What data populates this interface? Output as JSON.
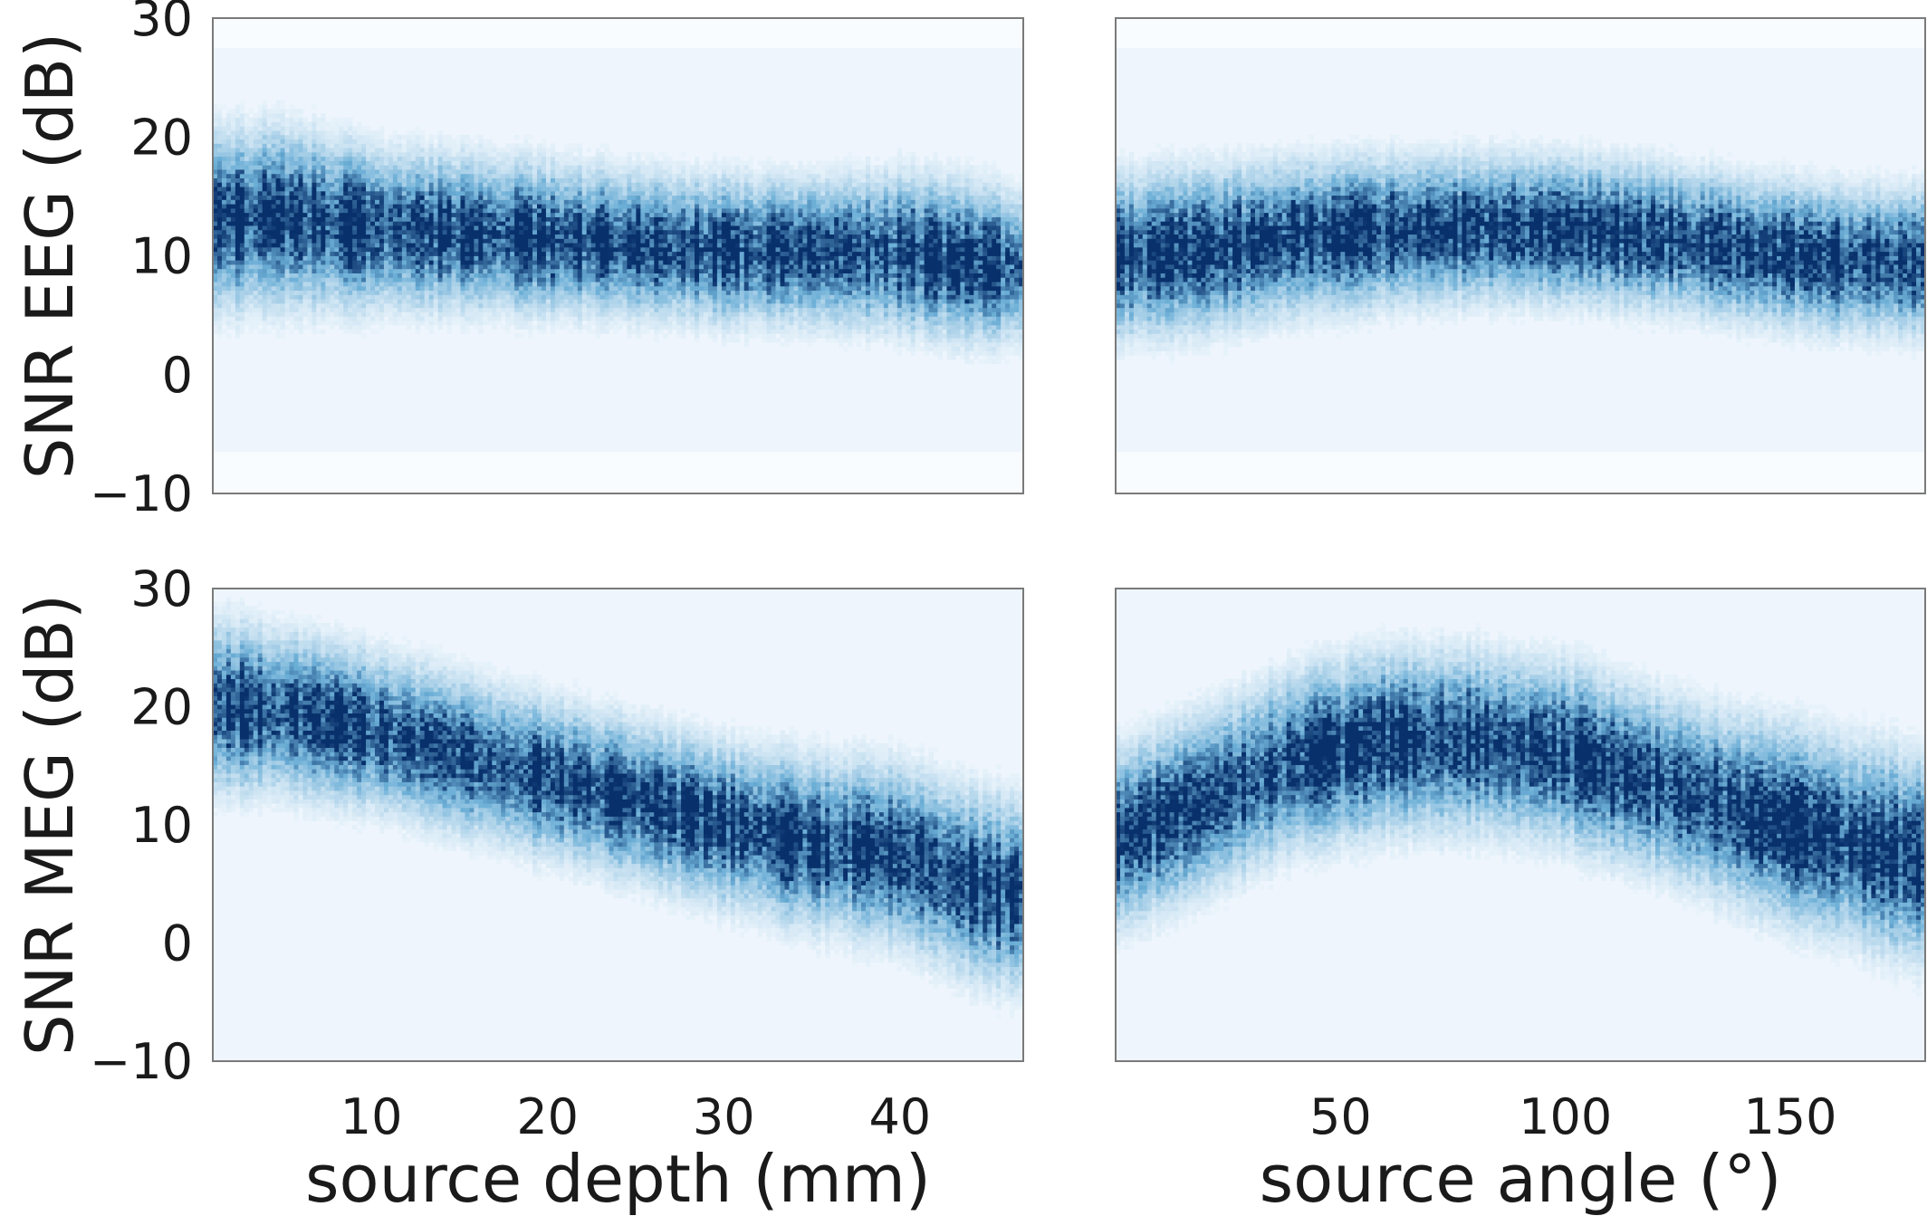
{
  "chart_data": [
    {
      "type": "heatmap",
      "panel": "top-left",
      "xlabel": "",
      "ylabel": "SNR EEG (dB)",
      "xlim": [
        1,
        47
      ],
      "ylim": [
        -10,
        30
      ],
      "xticks": [],
      "yticks": [
        -10,
        0,
        10,
        20,
        30
      ],
      "band": {
        "x": [
          2,
          5,
          10,
          15,
          20,
          25,
          30,
          35,
          40,
          44,
          47
        ],
        "center": [
          13,
          13.2,
          12.3,
          12,
          11.5,
          11,
          10.5,
          10.3,
          10.3,
          9.5,
          9
        ],
        "spread": [
          4,
          4,
          3.6,
          3.4,
          3.3,
          3.2,
          3.2,
          3.2,
          3.5,
          3.5,
          3.3
        ]
      },
      "grid": false
    },
    {
      "type": "heatmap",
      "panel": "top-right",
      "xlabel": "",
      "ylabel": "",
      "xlim": [
        0,
        180
      ],
      "ylim": [
        -10,
        30
      ],
      "xticks": [],
      "yticks": [],
      "band": {
        "x": [
          2,
          20,
          40,
          60,
          80,
          100,
          120,
          140,
          160,
          180
        ],
        "center": [
          10,
          10.5,
          11.5,
          12,
          12.3,
          12.2,
          11.6,
          10.5,
          9.7,
          9.5
        ],
        "spread": [
          3.6,
          3.6,
          3.4,
          3.3,
          3.2,
          3.2,
          3.2,
          3.2,
          3.2,
          3.2
        ]
      },
      "grid": false
    },
    {
      "type": "heatmap",
      "panel": "bottom-left",
      "xlabel": "source depth (mm)",
      "ylabel": "SNR MEG (dB)",
      "xlim": [
        1,
        47
      ],
      "ylim": [
        -10,
        30
      ],
      "xticks": [
        10,
        20,
        30,
        40
      ],
      "yticks": [
        -10,
        0,
        10,
        20,
        30
      ],
      "band": {
        "x": [
          2,
          5,
          10,
          15,
          20,
          25,
          30,
          35,
          40,
          44,
          47
        ],
        "center": [
          20,
          19.5,
          18,
          16,
          14,
          12,
          10,
          8.5,
          7.5,
          5,
          4
        ],
        "spread": [
          3.8,
          3.6,
          3.5,
          3.5,
          3.5,
          3.5,
          3.6,
          3.8,
          4,
          4.2,
          4.2
        ]
      },
      "grid": false
    },
    {
      "type": "heatmap",
      "panel": "bottom-right",
      "xlabel": "source angle (°)",
      "ylabel": "",
      "xlim": [
        0,
        180
      ],
      "ylim": [
        -10,
        30
      ],
      "xticks": [
        50,
        100,
        150
      ],
      "yticks": [],
      "band": {
        "x": [
          2,
          20,
          40,
          60,
          80,
          100,
          120,
          140,
          160,
          180
        ],
        "center": [
          9,
          12,
          15.5,
          17,
          17,
          16,
          13.5,
          11,
          9,
          7
        ],
        "spread": [
          4,
          4,
          4,
          4,
          4,
          4,
          4,
          4.2,
          4.4,
          4.6
        ]
      },
      "grid": false
    }
  ],
  "colors": {
    "colormap_low": "#f7fbff",
    "colormap_mid": "#6baed6",
    "colormap_high": "#08306b",
    "background_fill": "#eef5fc",
    "frame": "#7a7a7a"
  }
}
